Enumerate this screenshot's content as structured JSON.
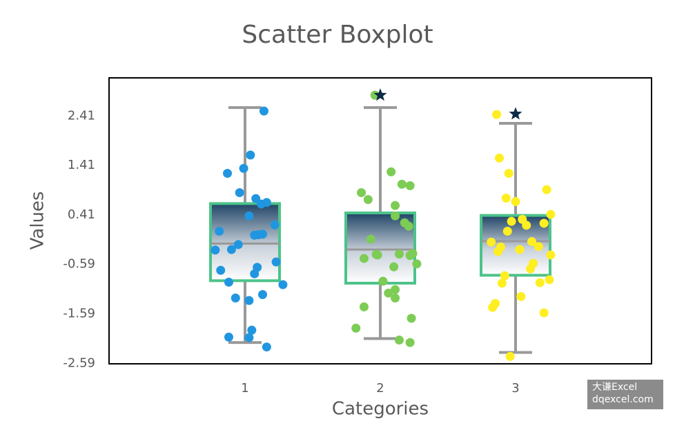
{
  "chart_data": {
    "type": "scatter-boxplot",
    "title": "Scatter Boxplot",
    "x_label": "Categories",
    "y_label": "Values",
    "xlim": [
      0,
      4
    ],
    "xticks": [
      1,
      2,
      3
    ],
    "ylim": [
      -2.6,
      3.18
    ],
    "yticks": [
      2.41,
      1.41,
      0.41,
      -0.59,
      -1.59,
      -2.59
    ],
    "box_color": "#4cc38a",
    "whisker_color": "#999999",
    "outlier_color": "#0d2b45",
    "boxes": [
      {
        "whisker_low": -2.17,
        "q1": -0.92,
        "median": -0.17,
        "q3": 0.64,
        "whisker_high": 2.58
      },
      {
        "whisker_low": -2.09,
        "q1": -0.97,
        "median": -0.29,
        "q3": 0.45,
        "whisker_high": 2.58,
        "outliers": [
          2.83
        ]
      },
      {
        "whisker_low": -2.37,
        "q1": -0.81,
        "median": -0.12,
        "q3": 0.4,
        "whisker_high": 2.26,
        "outliers": [
          2.45
        ]
      }
    ],
    "series": [
      {
        "color": "#2196e0",
        "x": [
          1.14,
          1.04,
          0.87,
          0.99,
          0.96,
          1.08,
          1.12,
          1.16,
          1.03,
          1.22,
          0.81,
          1.07,
          1.1,
          1.13,
          0.95,
          0.9,
          0.78,
          1.23,
          1.09,
          0.82,
          1.07,
          0.88,
          1.28,
          0.93,
          1.03,
          1.13,
          1.05,
          0.88,
          1.03,
          1.16
        ],
        "y": [
          2.51,
          1.62,
          1.25,
          1.35,
          0.86,
          0.74,
          0.63,
          0.66,
          0.39,
          0.21,
          0.08,
          0.0,
          0.01,
          0.02,
          -0.19,
          -0.29,
          -0.3,
          -0.54,
          -0.65,
          -0.71,
          -0.78,
          -0.95,
          -1.0,
          -1.27,
          -1.32,
          -1.2,
          -1.92,
          -2.06,
          -2.07,
          -2.26
        ]
      },
      {
        "color": "#7dcc55",
        "x": [
          1.96,
          2.08,
          2.16,
          2.22,
          1.86,
          1.91,
          2.11,
          2.11,
          2.18,
          2.21,
          1.93,
          1.98,
          1.97,
          2.14,
          2.22,
          2.24,
          1.88,
          2.27,
          2.1,
          2.02,
          2.11,
          2.06,
          2.11,
          1.88,
          2.23,
          1.82,
          2.14,
          2.22
        ],
        "y": [
          2.83,
          1.28,
          1.03,
          1.0,
          0.86,
          0.72,
          0.6,
          0.39,
          0.25,
          0.18,
          -0.08,
          -0.4,
          -0.39,
          -0.38,
          -0.41,
          -0.37,
          -0.47,
          -0.58,
          -0.64,
          -0.93,
          -1.1,
          -1.17,
          -1.27,
          -1.45,
          -1.68,
          -1.88,
          -2.12,
          -2.17
        ]
      },
      {
        "color": "#ffee22",
        "x": [
          2.86,
          2.88,
          2.95,
          3.23,
          2.93,
          3.0,
          3.26,
          3.05,
          2.97,
          3.08,
          3.21,
          2.94,
          2.82,
          2.89,
          3.12,
          3.17,
          3.26,
          3.03,
          2.87,
          3.13,
          3.11,
          2.92,
          3.25,
          2.9,
          3.18,
          3.04,
          2.85,
          2.83,
          3.21,
          2.96
        ],
        "y": [
          2.44,
          1.56,
          1.25,
          0.92,
          0.75,
          0.68,
          0.42,
          0.32,
          0.28,
          0.2,
          0.24,
          0.08,
          -0.14,
          -0.24,
          -0.13,
          -0.23,
          -0.4,
          -0.29,
          -0.33,
          -0.57,
          -0.68,
          -0.82,
          -0.9,
          -0.97,
          -0.96,
          -1.24,
          -1.38,
          -1.46,
          -1.57,
          -2.45
        ]
      }
    ],
    "watermark": [
      "大谦Excel",
      "dqexcel.com"
    ]
  }
}
